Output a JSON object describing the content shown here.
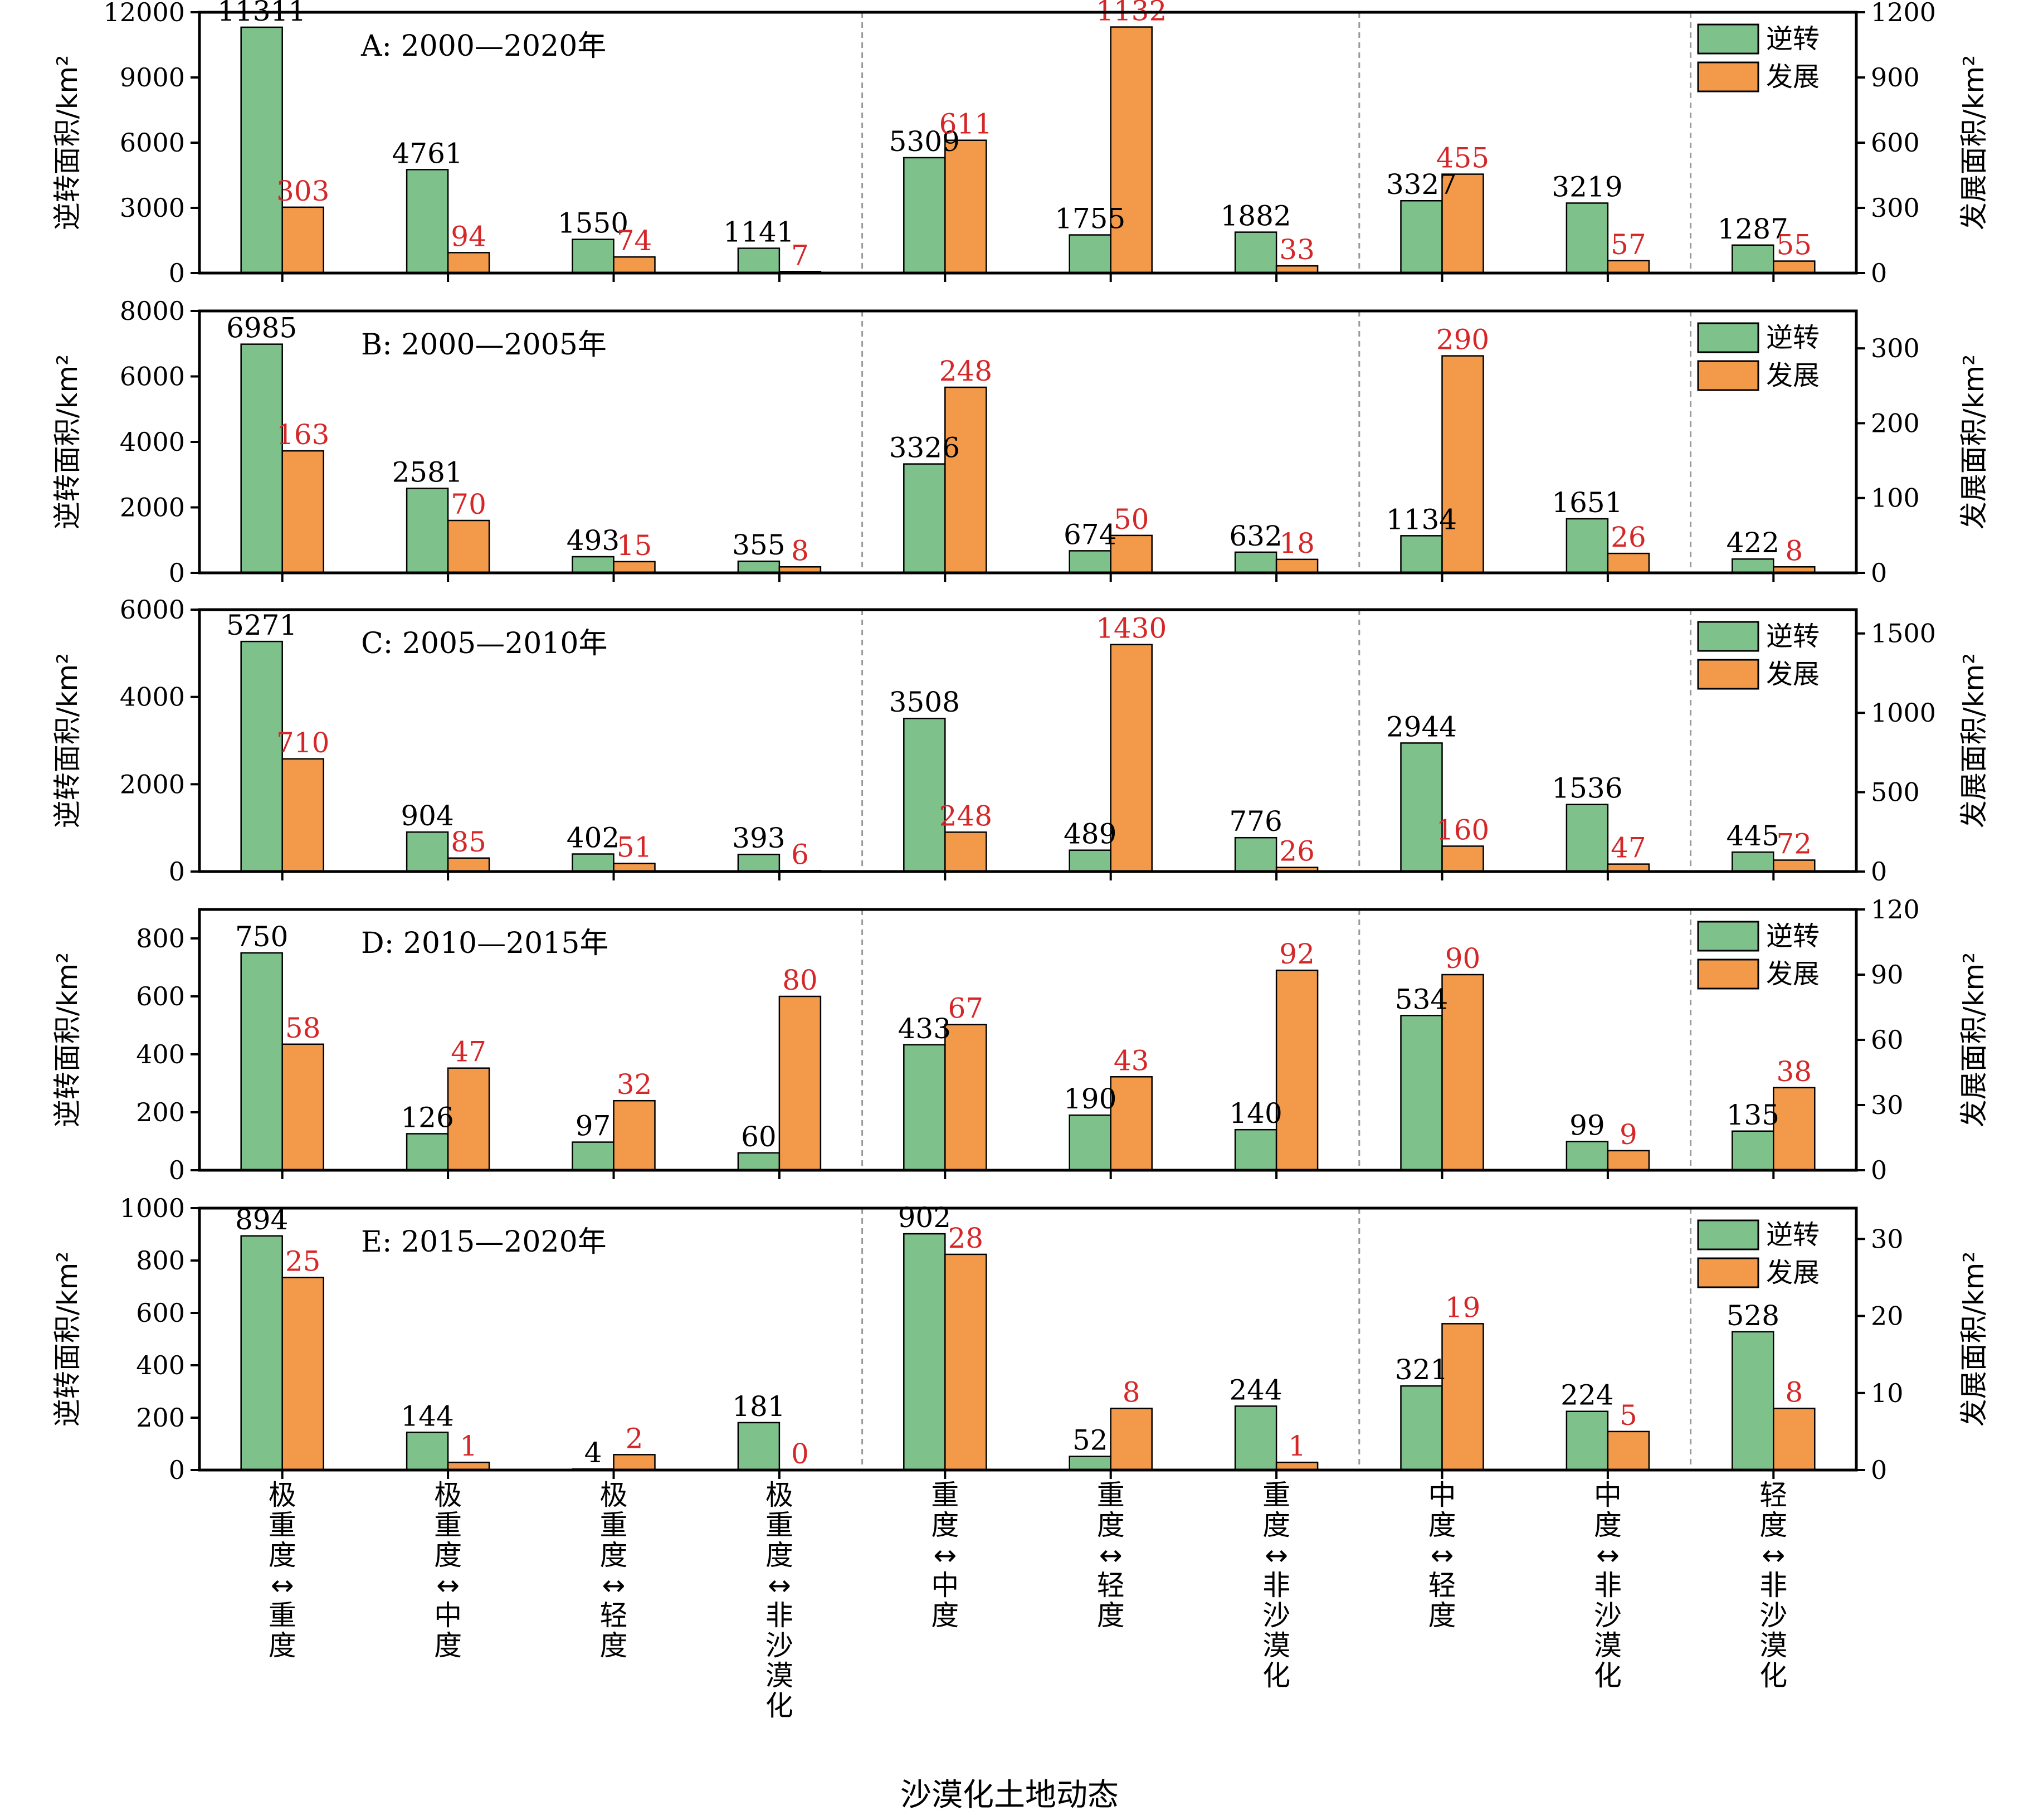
{
  "colors": {
    "reversal": "#7fc18b",
    "development": "#f2994a",
    "dev_label": "#d62728",
    "divider": "#9a9a9a"
  },
  "x_axis_label": "沙漠化土地动态",
  "categories": [
    "极重度↔重度",
    "极重度↔中度",
    "极重度↔轻度",
    "极重度↔非沙漠化",
    "重度↔中度",
    "重度↔轻度",
    "重度↔非沙漠化",
    "中度↔轻度",
    "中度↔非沙漠化",
    "轻度↔非沙漠化"
  ],
  "divider_after_category_index": [
    3,
    6,
    8
  ],
  "chart_data": [
    {
      "type": "bar",
      "title": "A: 2000—2020年",
      "ylabel_left": "逆转面积/km²",
      "ylabel_right": "发展面积/km²",
      "ylim_left": [
        0,
        12000
      ],
      "yticks_left": [
        0,
        3000,
        6000,
        9000,
        12000
      ],
      "ylim_right": [
        0,
        1200
      ],
      "yticks_right": [
        0,
        300,
        600,
        900,
        1200
      ],
      "legend": {
        "show": true,
        "placement": "top-right",
        "entries": [
          "逆转",
          "发展"
        ]
      },
      "series": [
        {
          "name": "逆转",
          "axis": "left",
          "values": [
            11311,
            4761,
            1550,
            1141,
            5309,
            1755,
            1882,
            3327,
            3219,
            1287
          ]
        },
        {
          "name": "发展",
          "axis": "right",
          "values": [
            303,
            94,
            74,
            7,
            611,
            1132,
            33,
            455,
            57,
            55
          ]
        }
      ]
    },
    {
      "type": "bar",
      "title": "B: 2000—2005年",
      "ylabel_left": "逆转面积/km²",
      "ylabel_right": "发展面积/km²",
      "ylim_left": [
        0,
        8000
      ],
      "yticks_left": [
        0,
        2000,
        4000,
        6000,
        8000
      ],
      "ylim_right": [
        0,
        350
      ],
      "yticks_right": [
        0,
        100,
        200,
        300
      ],
      "legend": {
        "show": true,
        "placement": "top-right",
        "entries": [
          "逆转",
          "发展"
        ]
      },
      "series": [
        {
          "name": "逆转",
          "axis": "left",
          "values": [
            6985,
            2581,
            493,
            355,
            3326,
            674,
            632,
            1134,
            1651,
            422
          ]
        },
        {
          "name": "发展",
          "axis": "right",
          "values": [
            163,
            70,
            15,
            8,
            248,
            50,
            18,
            290,
            26,
            8
          ]
        }
      ]
    },
    {
      "type": "bar",
      "title": "C: 2005—2010年",
      "ylabel_left": "逆转面积/km²",
      "ylabel_right": "发展面积/km²",
      "ylim_left": [
        0,
        6000
      ],
      "yticks_left": [
        0,
        2000,
        4000,
        6000
      ],
      "ylim_right": [
        0,
        1650
      ],
      "yticks_right": [
        0,
        500,
        1000,
        1500
      ],
      "legend": {
        "show": true,
        "placement": "top-right",
        "entries": [
          "逆转",
          "发展"
        ]
      },
      "series": [
        {
          "name": "逆转",
          "axis": "left",
          "values": [
            5271,
            904,
            402,
            393,
            3508,
            489,
            776,
            2944,
            1536,
            445
          ]
        },
        {
          "name": "发展",
          "axis": "right",
          "values": [
            710,
            85,
            51,
            6,
            248,
            1430,
            26,
            160,
            47,
            72
          ]
        }
      ]
    },
    {
      "type": "bar",
      "title": "D: 2010—2015年",
      "ylabel_left": "逆转面积/km²",
      "ylabel_right": "发展面积/km²",
      "ylim_left": [
        0,
        900
      ],
      "yticks_left": [
        0,
        200,
        400,
        600,
        800
      ],
      "ylim_right": [
        0,
        120
      ],
      "yticks_right": [
        0,
        30,
        60,
        90,
        120
      ],
      "legend": {
        "show": true,
        "placement": "top-right",
        "entries": [
          "逆转",
          "发展"
        ]
      },
      "series": [
        {
          "name": "逆转",
          "axis": "left",
          "values": [
            750,
            126,
            97,
            60,
            433,
            190,
            140,
            534,
            99,
            135
          ]
        },
        {
          "name": "发展",
          "axis": "right",
          "values": [
            58,
            47,
            32,
            80,
            67,
            43,
            92,
            90,
            9,
            38
          ]
        }
      ]
    },
    {
      "type": "bar",
      "title": "E: 2015—2020年",
      "ylabel_left": "逆转面积/km²",
      "ylabel_right": "发展面积/km²",
      "ylim_left": [
        0,
        1000
      ],
      "yticks_left": [
        0,
        200,
        400,
        600,
        800,
        1000
      ],
      "ylim_right": [
        0,
        34
      ],
      "yticks_right": [
        0,
        10,
        20,
        30
      ],
      "legend": {
        "show": true,
        "placement": "top-right",
        "entries": [
          "逆转",
          "发展"
        ]
      },
      "series": [
        {
          "name": "逆转",
          "axis": "left",
          "values": [
            894,
            144,
            4,
            181,
            902,
            52,
            244,
            321,
            224,
            528
          ]
        },
        {
          "name": "发展",
          "axis": "right",
          "values": [
            25,
            1,
            2,
            0,
            28,
            8,
            1,
            19,
            5,
            8
          ]
        }
      ]
    }
  ]
}
